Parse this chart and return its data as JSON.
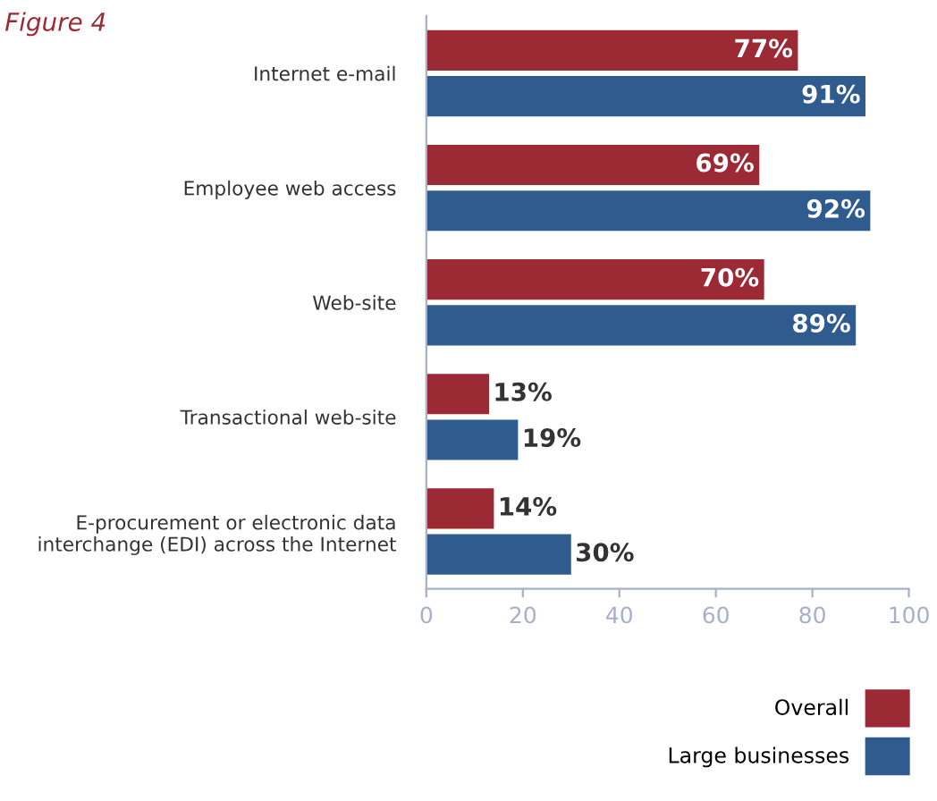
{
  "chart_data": {
    "type": "bar",
    "orientation": "horizontal",
    "title": "Figure 4",
    "categories": [
      "Internet e-mail",
      "Employee web access",
      "Web-site",
      "Transactional web-site",
      "E-procurement or electronic data\ninterchange (EDI) across the Internet"
    ],
    "series": [
      {
        "name": "Overall",
        "color": "#9b2a35",
        "values": [
          77,
          69,
          70,
          13,
          14
        ],
        "value_labels": [
          "77%",
          "69%",
          "70%",
          "13%",
          "14%"
        ]
      },
      {
        "name": "Large businesses",
        "color": "#2f5b8f",
        "values": [
          91,
          92,
          89,
          19,
          30
        ],
        "value_labels": [
          "91%",
          "92%",
          "89%",
          "19%",
          "30%"
        ]
      }
    ],
    "xlim": [
      0,
      100
    ],
    "xticks": [
      0,
      20,
      40,
      60,
      80,
      100
    ],
    "grid": false,
    "legend": "bottom right"
  }
}
